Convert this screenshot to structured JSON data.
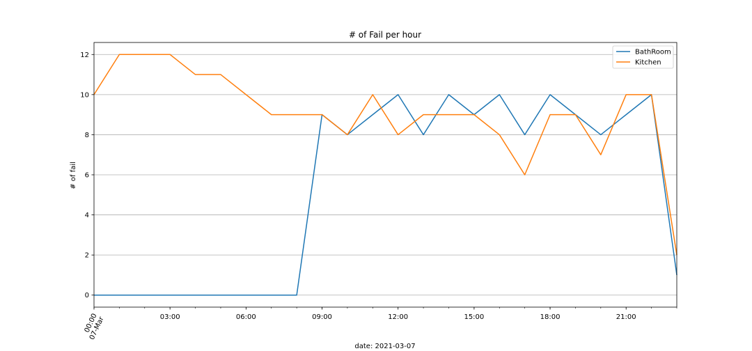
{
  "chart_data": {
    "type": "line",
    "title": "# of Fail per hour",
    "xlabel": "date: 2021-03-07",
    "ylabel": "# of fail",
    "x": [
      "00:00",
      "01:00",
      "02:00",
      "03:00",
      "04:00",
      "05:00",
      "06:00",
      "07:00",
      "08:00",
      "09:00",
      "10:00",
      "11:00",
      "12:00",
      "13:00",
      "14:00",
      "15:00",
      "16:00",
      "17:00",
      "18:00",
      "19:00",
      "20:00",
      "21:00",
      "22:00",
      "23:00"
    ],
    "xlim": [
      "00:00",
      "23:00"
    ],
    "x_ticks": [
      {
        "value": "00:00",
        "label": "00:00",
        "sublabel": "07-Mar",
        "rotated": true
      },
      {
        "value": "03:00",
        "label": "03:00"
      },
      {
        "value": "06:00",
        "label": "06:00"
      },
      {
        "value": "09:00",
        "label": "09:00"
      },
      {
        "value": "12:00",
        "label": "12:00"
      },
      {
        "value": "15:00",
        "label": "15:00"
      },
      {
        "value": "18:00",
        "label": "18:00"
      },
      {
        "value": "21:00",
        "label": "21:00"
      }
    ],
    "ylim": [
      -0.6,
      12.6
    ],
    "y_ticks": [
      0,
      2,
      4,
      6,
      8,
      10,
      12
    ],
    "grid": "y-major",
    "legend": "top-right",
    "series": [
      {
        "name": "BathRoom",
        "color": "#1f77b4",
        "values": [
          0,
          0,
          0,
          0,
          0,
          0,
          0,
          0,
          0,
          9,
          8,
          9,
          10,
          8,
          10,
          9,
          10,
          8,
          10,
          9,
          8,
          9,
          10,
          1
        ]
      },
      {
        "name": "Kitchen",
        "color": "#ff7f0e",
        "values": [
          10,
          12,
          12,
          12,
          11,
          11,
          10,
          9,
          9,
          9,
          8,
          10,
          8,
          9,
          9,
          9,
          8,
          6,
          9,
          9,
          7,
          10,
          10,
          2
        ]
      }
    ]
  }
}
